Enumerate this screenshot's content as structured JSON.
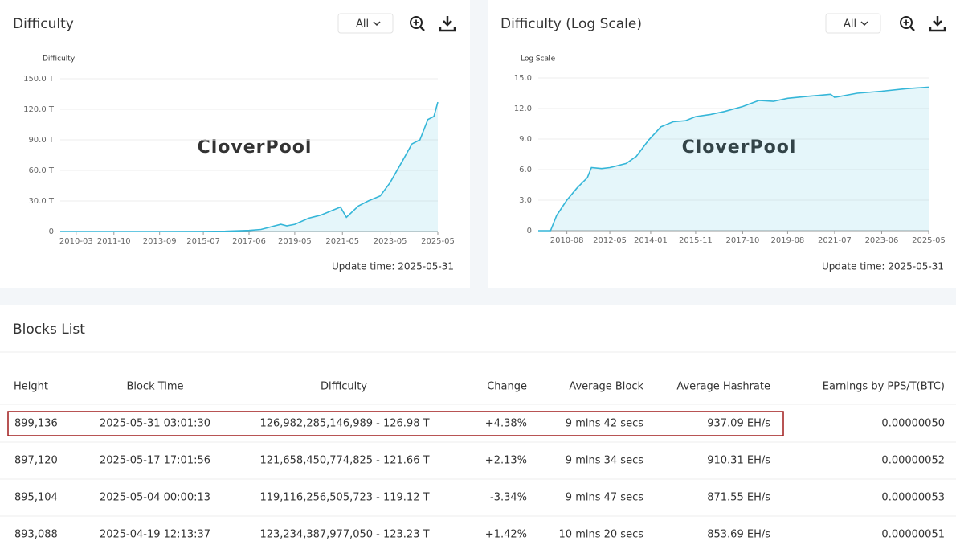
{
  "chart_data": [
    {
      "type": "line",
      "title": "Difficulty",
      "ylabel": "Difficulty",
      "watermark": "CloverPool",
      "selector": "All",
      "update_time": "Update time: 2025-05-31",
      "color": "#35b6d8",
      "log_scale": false,
      "grid": true,
      "x": [
        "2009-07",
        "2013-09",
        "2015-07",
        "2016-06",
        "2017-06",
        "2017-12",
        "2018-10",
        "2019-01",
        "2019-05",
        "2019-12",
        "2020-06",
        "2021-04",
        "2021-07",
        "2022-01",
        "2022-06",
        "2022-12",
        "2023-05",
        "2023-12",
        "2024-04",
        "2024-08",
        "2024-12",
        "2025-03",
        "2025-05"
      ],
      "values": [
        0,
        0,
        0.05,
        0.2,
        1,
        2,
        7,
        5.5,
        7,
        13,
        16,
        24,
        14,
        25,
        30,
        35,
        48,
        72,
        86,
        90,
        110,
        113,
        127
      ],
      "xlim": [
        "2009-07",
        "2025-05"
      ],
      "xticks": [
        "2010-03",
        "2011-10",
        "2013-09",
        "2015-07",
        "2017-06",
        "2019-05",
        "2021-05",
        "2023-05",
        "2025-05"
      ],
      "ylim": [
        0,
        150
      ],
      "yticks": [
        0,
        {
          "value": 30,
          "label": "30.0 T"
        },
        {
          "value": 60,
          "label": "60.0 T"
        },
        {
          "value": 90,
          "label": "90.0 T"
        },
        {
          "value": 120,
          "label": "120.0 T"
        },
        {
          "value": 150,
          "label": "150.0 T"
        }
      ]
    },
    {
      "type": "line",
      "title": "Difficulty (Log Scale)",
      "ylabel": "Log Scale",
      "watermark": "CloverPool",
      "selector": "All",
      "update_time": "Update time: 2025-05-31",
      "color": "#35b6d8",
      "log_scale": false,
      "grid": true,
      "x": [
        "2009-06",
        "2009-12",
        "2010-03",
        "2010-08",
        "2011-01",
        "2011-06",
        "2011-08",
        "2012-01",
        "2012-05",
        "2013-01",
        "2013-06",
        "2013-12",
        "2014-06",
        "2014-12",
        "2015-06",
        "2015-11",
        "2016-06",
        "2017-01",
        "2017-10",
        "2018-06",
        "2019-01",
        "2019-08",
        "2020-06",
        "2021-05",
        "2021-07",
        "2022-06",
        "2023-06",
        "2024-06",
        "2025-05"
      ],
      "values": [
        0,
        0,
        1.5,
        3,
        4.2,
        5.2,
        6.2,
        6.1,
        6.2,
        6.6,
        7.3,
        8.9,
        10.2,
        10.7,
        10.8,
        11.2,
        11.4,
        11.7,
        12.2,
        12.8,
        12.7,
        13,
        13.2,
        13.4,
        13.1,
        13.5,
        13.7,
        13.95,
        14.1
      ],
      "xlim": [
        "2009-06",
        "2025-05"
      ],
      "xticks": [
        "2010-08",
        "2012-05",
        "2014-01",
        "2015-11",
        "2017-10",
        "2019-08",
        "2021-07",
        "2023-06",
        "2025-05"
      ],
      "ylim": [
        0,
        15
      ],
      "yticks": [
        0,
        {
          "value": 3,
          "label": "3.0"
        },
        {
          "value": 6,
          "label": "6.0"
        },
        {
          "value": 9,
          "label": "9.0"
        },
        {
          "value": 12,
          "label": "12.0"
        },
        {
          "value": 15,
          "label": "15.0"
        }
      ]
    }
  ],
  "table": {
    "title": "Blocks List",
    "highlight_row": 0,
    "columns": [
      "Height",
      "Block Time",
      "Difficulty",
      "Change",
      "Average Block",
      "Average Hashrate",
      "Earnings by PPS/T(BTC)"
    ],
    "rows": [
      [
        "899,136",
        "2025-05-31 03:01:30",
        "126,982,285,146,989 - 126.98 T",
        "+4.38%",
        "9 mins 42 secs",
        "937.09 EH/s",
        "0.00000050"
      ],
      [
        "897,120",
        "2025-05-17 17:01:56",
        "121,658,450,774,825 - 121.66 T",
        "+2.13%",
        "9 mins 34 secs",
        "910.31 EH/s",
        "0.00000052"
      ],
      [
        "895,104",
        "2025-05-04 00:00:13",
        "119,116,256,505,723 - 119.12 T",
        "-3.34%",
        "9 mins 47 secs",
        "871.55 EH/s",
        "0.00000053"
      ],
      [
        "893,088",
        "2025-04-19 12:13:37",
        "123,234,387,977,050 - 123.23 T",
        "+1.42%",
        "10 mins 20 secs",
        "853.69 EH/s",
        "0.00000051"
      ]
    ]
  }
}
